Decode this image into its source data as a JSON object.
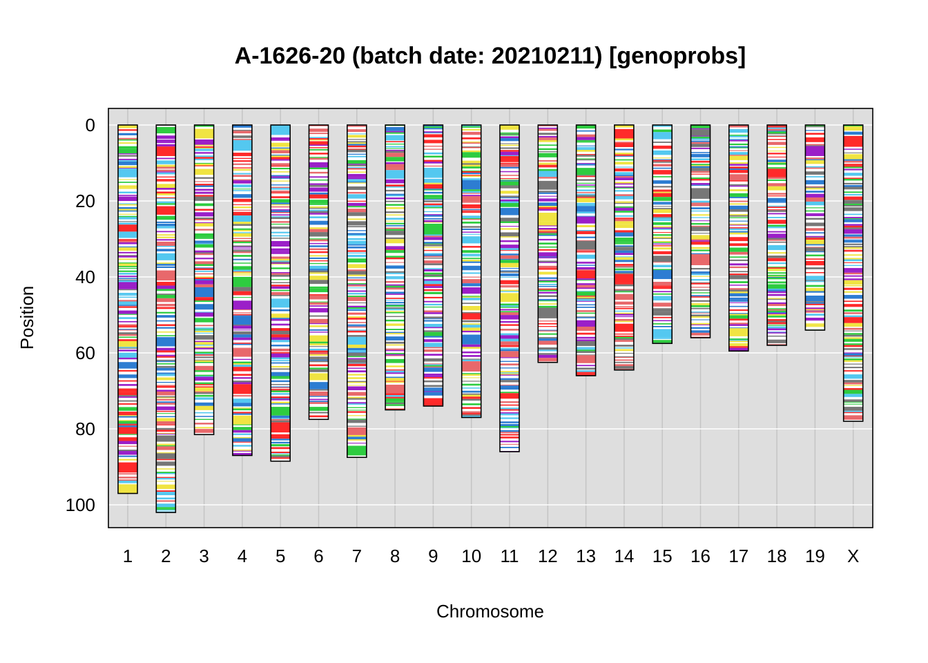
{
  "chart_data": {
    "type": "ideogram",
    "title": "A-1626-20 (batch date: 20210211) [genoprobs]",
    "xlabel": "Chromosome",
    "ylabel": "Position",
    "y_reversed": true,
    "ylim": [
      0,
      106
    ],
    "yticks": [
      0,
      20,
      40,
      60,
      80,
      100
    ],
    "grid": true,
    "background_color": "#dedede",
    "segment_palette": [
      "#f0e442",
      "#777777",
      "#e8686b",
      "#2d7dd2",
      "#54c8f0",
      "#2ecc40",
      "#ff2a2a",
      "#9b1fc8"
    ],
    "segment_note": "chromosomes filled with many thin colored founder-haplotype stripes",
    "chromosomes": [
      {
        "name": "1",
        "length": 97
      },
      {
        "name": "2",
        "length": 102
      },
      {
        "name": "3",
        "length": 81.5
      },
      {
        "name": "4",
        "length": 87
      },
      {
        "name": "5",
        "length": 88.5
      },
      {
        "name": "6",
        "length": 77.5
      },
      {
        "name": "7",
        "length": 87.5
      },
      {
        "name": "8",
        "length": 75
      },
      {
        "name": "9",
        "length": 74
      },
      {
        "name": "10",
        "length": 77
      },
      {
        "name": "11",
        "length": 86
      },
      {
        "name": "12",
        "length": 62.5
      },
      {
        "name": "13",
        "length": 66
      },
      {
        "name": "14",
        "length": 64.5
      },
      {
        "name": "15",
        "length": 57.5
      },
      {
        "name": "16",
        "length": 56
      },
      {
        "name": "17",
        "length": 59.5
      },
      {
        "name": "18",
        "length": 58
      },
      {
        "name": "19",
        "length": 54
      },
      {
        "name": "X",
        "length": 78
      }
    ]
  }
}
